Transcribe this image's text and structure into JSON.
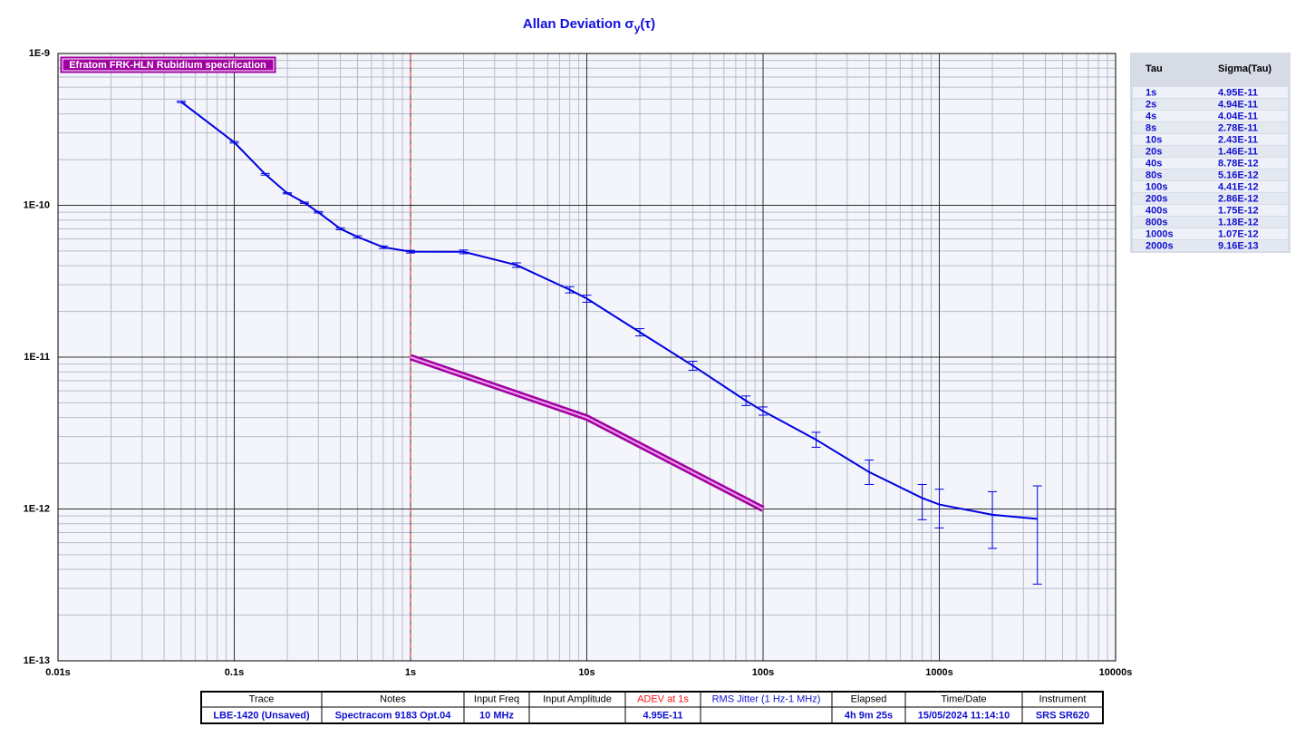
{
  "chart_data": {
    "type": "line",
    "title_parts": [
      "Allan Deviation σ",
      "y",
      "(τ)"
    ],
    "log_x": true,
    "log_y": true,
    "grid": true,
    "minor_grid": true,
    "legend": "upper-left",
    "xlim": [
      0.01,
      10000
    ],
    "ylim": [
      1e-13,
      1e-09
    ],
    "xticks": [
      {
        "value": 0.01,
        "label": "0.01s"
      },
      {
        "value": 0.1,
        "label": "0.1s"
      },
      {
        "value": 1,
        "label": "1s"
      },
      {
        "value": 10,
        "label": "10s"
      },
      {
        "value": 100,
        "label": "100s"
      },
      {
        "value": 1000,
        "label": "1000s"
      },
      {
        "value": 10000,
        "label": "10000s"
      }
    ],
    "yticks": [
      {
        "value": 1e-13,
        "label": "1E-13"
      },
      {
        "value": 1e-12,
        "label": "1E-12"
      },
      {
        "value": 1e-11,
        "label": "1E-11"
      },
      {
        "value": 1e-10,
        "label": "1E-10"
      },
      {
        "value": 1e-09,
        "label": "1E-9"
      }
    ],
    "marker_x": 1,
    "marker_color": "#e02020",
    "series": [
      {
        "color": "#0000e0",
        "x": [
          0.05,
          0.1,
          0.15,
          0.2,
          0.25,
          0.3,
          0.4,
          0.5,
          0.7,
          1,
          2,
          4,
          8,
          10,
          20,
          40,
          80,
          100,
          200,
          400,
          800,
          1000,
          2000,
          3600
        ],
        "values": [
          4.8e-10,
          2.6e-10,
          1.6e-10,
          1.2e-10,
          1.04e-10,
          9e-11,
          7e-11,
          6.2e-11,
          5.3e-11,
          4.95e-11,
          4.94e-11,
          4.04e-11,
          2.78e-11,
          2.43e-11,
          1.46e-11,
          8.78e-12,
          5.16e-12,
          4.41e-12,
          2.86e-12,
          1.75e-12,
          1.18e-12,
          1.07e-12,
          9.16e-13,
          8.6e-13
        ],
        "lower": [
          4.75e-10,
          2.57e-10,
          1.58e-10,
          1.19e-10,
          1.03e-10,
          8.9e-11,
          6.9e-11,
          6.1e-11,
          5.2e-11,
          4.85e-11,
          4.8e-11,
          3.9e-11,
          2.65e-11,
          2.3e-11,
          1.38e-11,
          8.2e-12,
          4.8e-12,
          4.15e-12,
          2.55e-12,
          1.45e-12,
          8.5e-13,
          7.5e-13,
          5.5e-13,
          3.2e-13
        ],
        "upper": [
          4.85e-10,
          2.63e-10,
          1.62e-10,
          1.21e-10,
          1.05e-10,
          9.1e-11,
          7.1e-11,
          6.3e-11,
          5.4e-11,
          5.05e-11,
          5.08e-11,
          4.18e-11,
          2.91e-11,
          2.56e-11,
          1.54e-11,
          9.4e-12,
          5.55e-12,
          4.7e-12,
          3.2e-12,
          2.1e-12,
          1.45e-12,
          1.35e-12,
          1.3e-12,
          1.42e-12
        ]
      },
      {
        "name": "Efratom FRK-HLN Rubidium specification",
        "color": "#a000a0",
        "x": [
          1,
          10,
          100
        ],
        "values": [
          1e-11,
          4e-12,
          1e-12
        ]
      }
    ]
  },
  "tau_table": {
    "columns": [
      "Tau",
      "Sigma(Tau)"
    ],
    "rows": [
      [
        "1s",
        "4.95E-11"
      ],
      [
        "2s",
        "4.94E-11"
      ],
      [
        "4s",
        "4.04E-11"
      ],
      [
        "8s",
        "2.78E-11"
      ],
      [
        "10s",
        "2.43E-11"
      ],
      [
        "20s",
        "1.46E-11"
      ],
      [
        "40s",
        "8.78E-12"
      ],
      [
        "80s",
        "5.16E-12"
      ],
      [
        "100s",
        "4.41E-12"
      ],
      [
        "200s",
        "2.86E-12"
      ],
      [
        "400s",
        "1.75E-12"
      ],
      [
        "800s",
        "1.18E-12"
      ],
      [
        "1000s",
        "1.07E-12"
      ],
      [
        "2000s",
        "9.16E-13"
      ]
    ]
  },
  "info_table": {
    "columns": [
      "Trace",
      "Notes",
      "Input Freq",
      "Input Amplitude",
      "ADEV at 1s",
      "RMS Jitter (1 Hz-1 MHz)",
      "Elapsed",
      "Time/Date",
      "Instrument"
    ],
    "row": [
      "LBE-1420 (Unsaved)",
      "Spectracom 9183 Opt.04",
      "10 MHz",
      "",
      "4.95E-11",
      "",
      "4h 9m 25s",
      "15/05/2024 11:14:10",
      "SRS SR620"
    ]
  }
}
